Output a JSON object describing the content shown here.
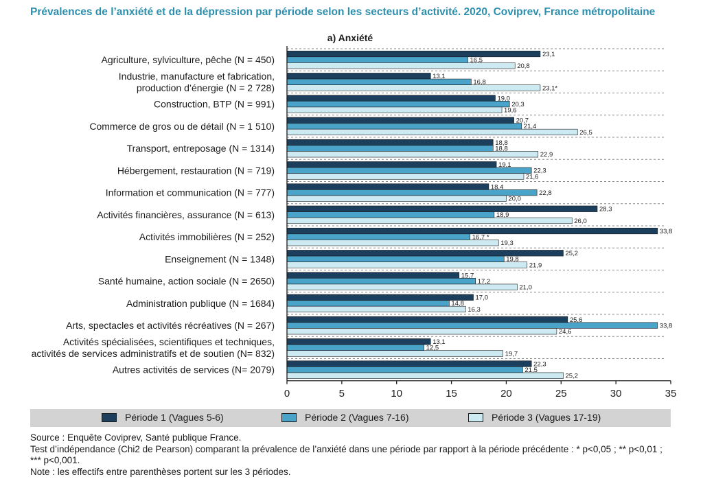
{
  "title": "Prévalences de l’anxiété et de la dépression par période selon les secteurs d’activité. 2020, Coviprev, France métropolitaine",
  "legend": [
    {
      "label": "Période 1 (Vagues 5-6)",
      "color": "#1c3f5e"
    },
    {
      "label": "Période 2 (Vagues 7-16)",
      "color": "#4aa3c8"
    },
    {
      "label": "Période 3 (Vagues 17-19)",
      "color": "#cde9f2"
    }
  ],
  "notes": {
    "source": "Source : Enquête Coviprev, Santé publique France.",
    "test_line1": "Test d’indépendance (Chi2 de Pearson) comparant la prévalence de l’anxiété dans une période par rapport à la période précédente : * p<0,05 ; ** p<0,01 ;",
    "test_line2": "*** p<0,001.",
    "note": "Note : les effectifs entre parenthèses portent sur les 3 périodes."
  },
  "chart_data": {
    "type": "bar",
    "orientation": "horizontal",
    "subtitle": "a) Anxiété",
    "categories": [
      [
        "Agriculture, sylviculture, pêche (N = 450)"
      ],
      [
        "Industrie, manufacture et fabrication,",
        "production d’énergie (N = 2 728)"
      ],
      [
        "Construction, BTP (N = 991)"
      ],
      [
        "Commerce de gros ou de détail  (N = 1 510)"
      ],
      [
        "Transport, entreposage (N = 1314)"
      ],
      [
        "Hébergement, restauration (N = 719)"
      ],
      [
        "Information et communication (N = 777)"
      ],
      [
        "Activités financières, assurance (N = 613)"
      ],
      [
        "Activités immobilières (N = 252)"
      ],
      [
        "Enseignement (N = 1348)"
      ],
      [
        "Santé humaine, action sociale (N = 2650)"
      ],
      [
        "Administration publique (N = 1684)"
      ],
      [
        "Arts, spectacles et activités récréatives (N = 267)"
      ],
      [
        "Activités spécialisées, scientifiques et techniques,",
        "activités de services administratifs et de soutien (N= 832)"
      ],
      [
        "Autres activités de services (N= 2079)"
      ]
    ],
    "series": [
      {
        "name": "Période 1 (Vagues 5-6)",
        "color": "#1c3f5e",
        "values": [
          23.1,
          13.1,
          19.0,
          20.7,
          18.8,
          19.1,
          18.4,
          28.3,
          33.8,
          25.2,
          15.7,
          17.0,
          25.6,
          13.1,
          22.3
        ],
        "labels": [
          "23,1",
          "13,1",
          "19,0",
          "20,7",
          "18,8",
          "19,1",
          "18,4",
          "28,3",
          "33,8",
          "25,2",
          "15,7",
          "17,0",
          "25,6",
          "13,1",
          "22,3"
        ]
      },
      {
        "name": "Période 2 (Vagues 7-16)",
        "color": "#4aa3c8",
        "values": [
          16.5,
          16.8,
          20.3,
          21.4,
          18.8,
          22.3,
          22.8,
          18.9,
          16.7,
          19.8,
          17.2,
          14.8,
          33.8,
          12.5,
          21.5
        ],
        "labels": [
          "16,5",
          "16,8",
          "20,3",
          "21,4",
          "18,8",
          "22,3",
          "22,8",
          "18,9",
          "16,7 *",
          "19,8",
          "17,2",
          "14,8",
          "33,8",
          "12,5",
          "21,5"
        ]
      },
      {
        "name": "Période 3 (Vagues 17-19)",
        "color": "#cde9f2",
        "values": [
          20.8,
          23.1,
          19.6,
          26.5,
          22.9,
          21.6,
          20.0,
          26.0,
          19.3,
          21.9,
          21.0,
          16.3,
          24.6,
          19.7,
          25.2
        ],
        "labels": [
          "20,8",
          "23,1*",
          "19,6",
          "26,5",
          "22,9",
          "21,6",
          "20,0",
          "26,0",
          "19,3",
          "21,9",
          "21,0",
          "16,3",
          "24,6",
          "19,7",
          "25,2"
        ]
      }
    ],
    "xlim": [
      0,
      35
    ],
    "xticks": [
      0,
      5,
      10,
      15,
      20,
      25,
      30,
      35
    ],
    "grid": "horizontal dashed separators",
    "legend_position": "bottom"
  }
}
